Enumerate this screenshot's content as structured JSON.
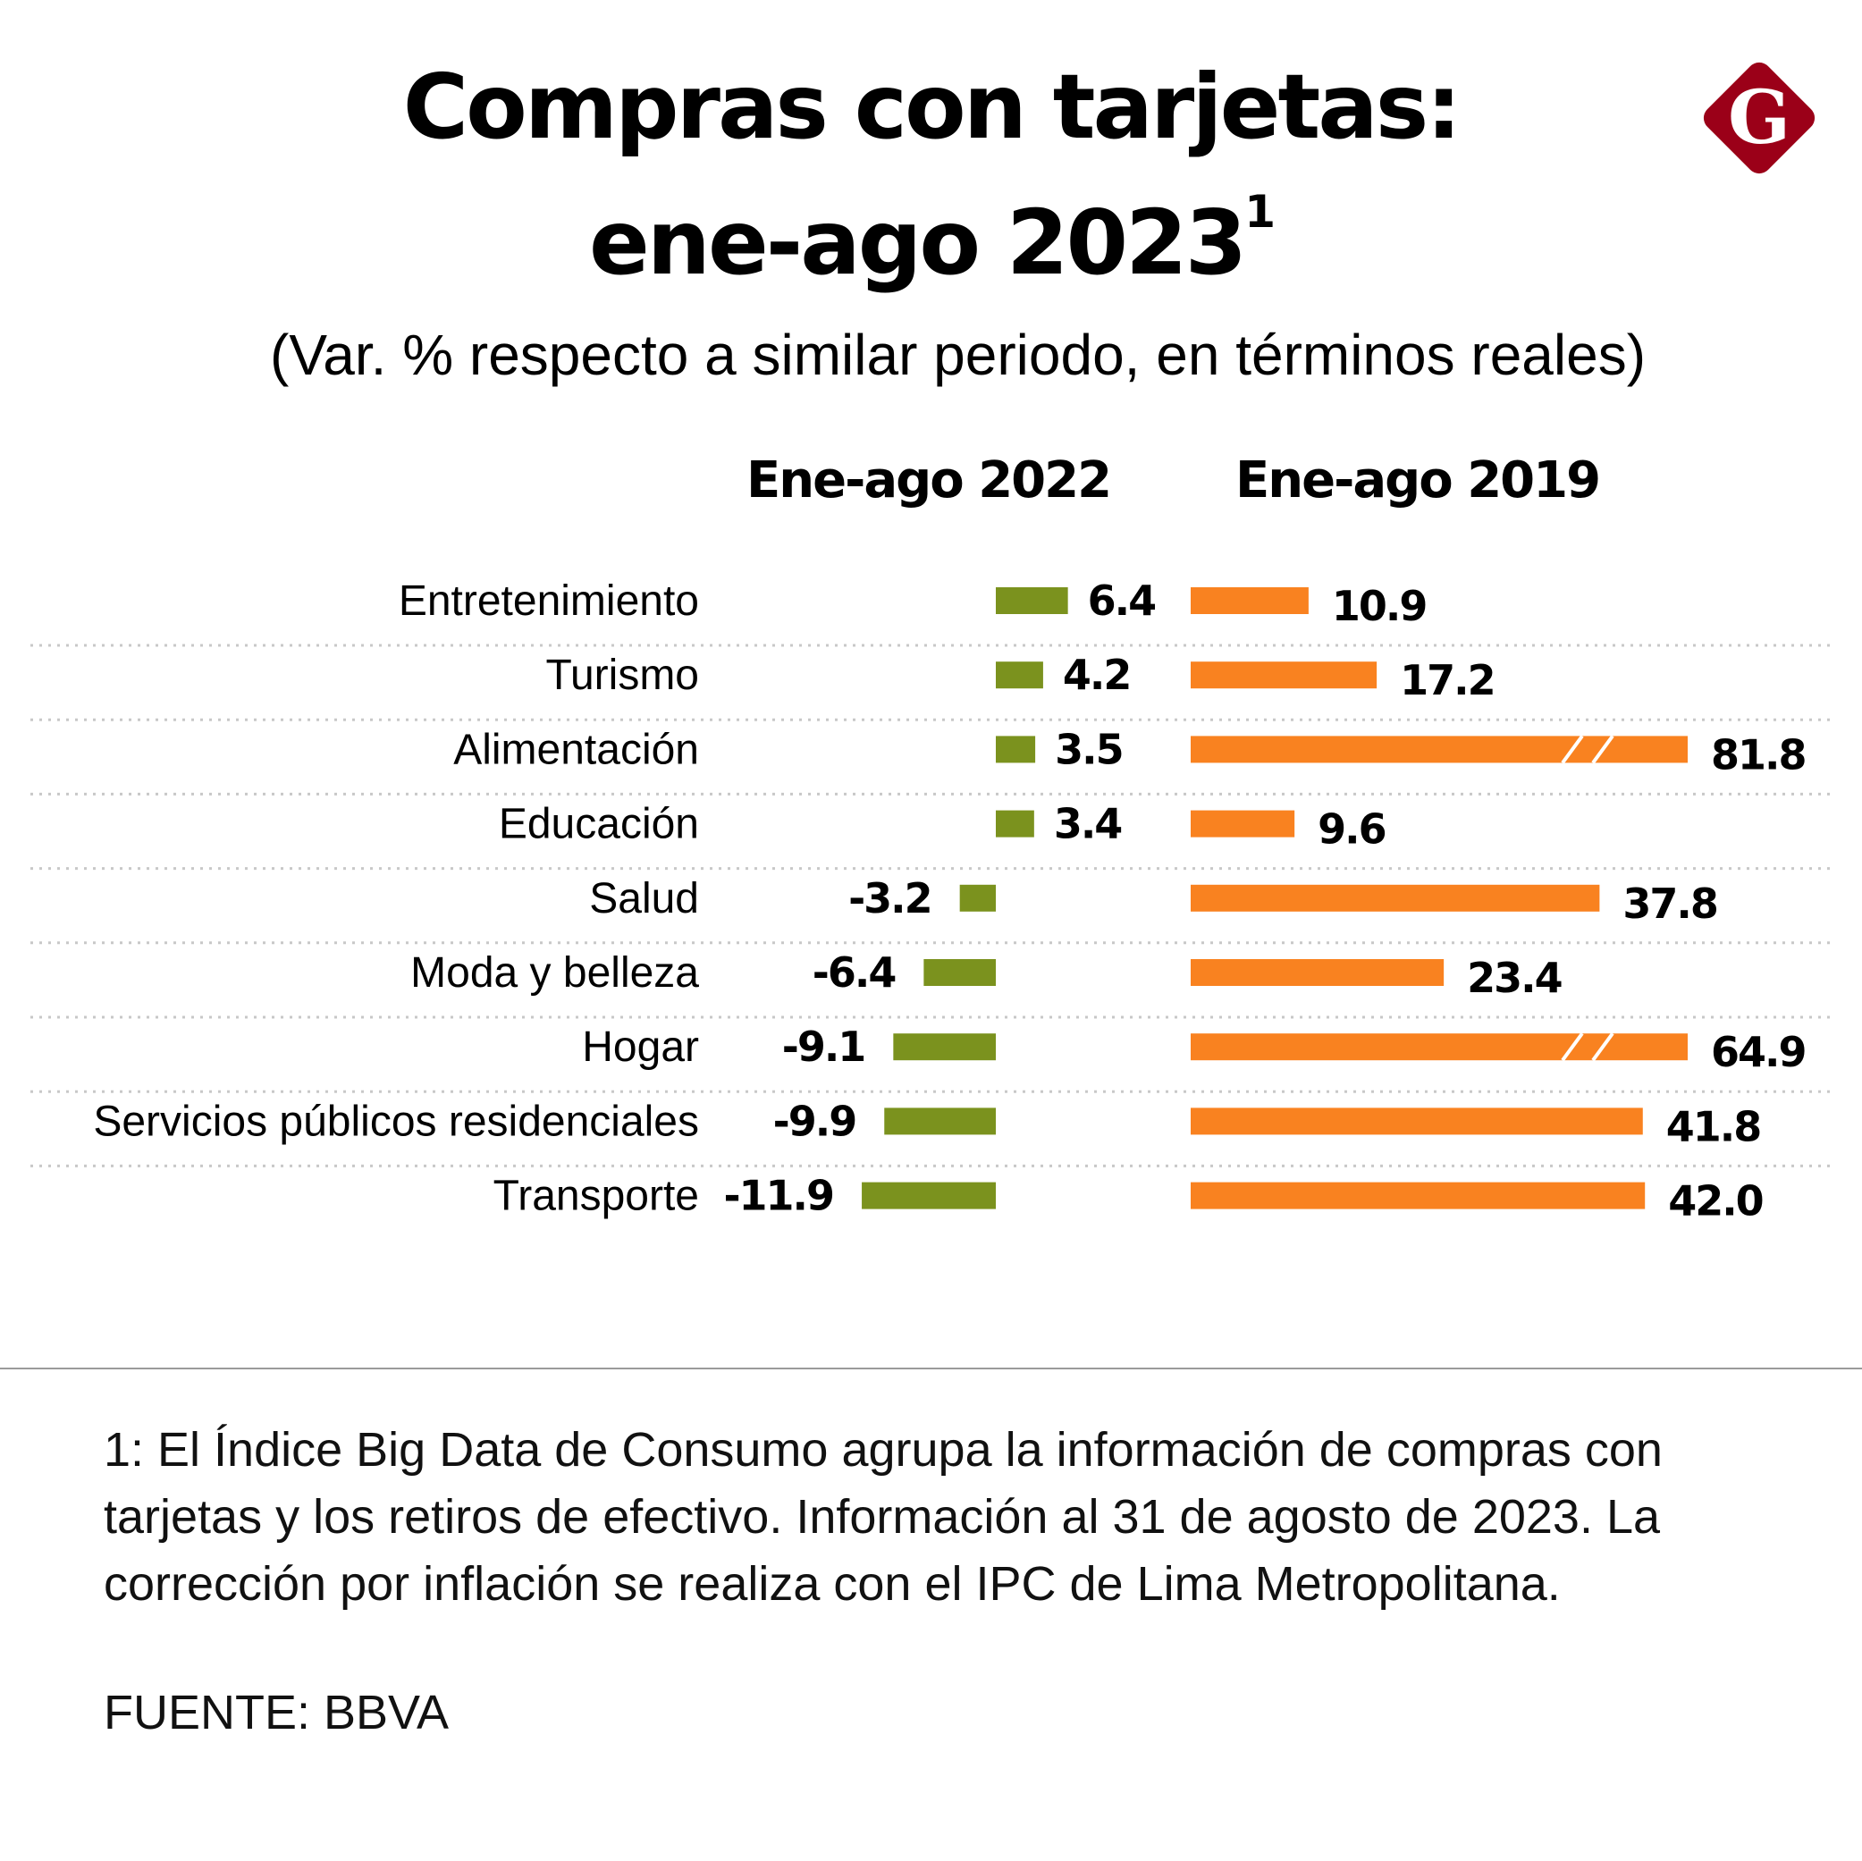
{
  "header": {
    "title_line1": "Compras con tarjetas:",
    "title_line2": "ene-ago 2023",
    "title_superscript": "1",
    "subtitle": "(Var. % respecto a similar periodo, en términos reales)",
    "logo_icon": "gestion-g-diamond-icon",
    "logo_letter": "G"
  },
  "colors": {
    "series_2022": "#7b921e",
    "series_2019": "#f98220",
    "logo": "#9b0018",
    "separator": "#c8c8c8"
  },
  "chart_data": {
    "type": "bar",
    "orientation": "horizontal",
    "title": "Compras con tarjetas: ene-ago 2023",
    "subtitle": "(Var. % respecto a similar periodo, en términos reales)",
    "categories": [
      "Entretenimiento",
      "Turismo",
      "Alimentación",
      "Educación",
      "Salud",
      "Moda y belleza",
      "Hogar",
      "Servicios públicos residenciales",
      "Transporte"
    ],
    "series": [
      {
        "name": "Ene-ago 2022",
        "values": [
          6.4,
          4.2,
          3.5,
          3.4,
          -3.2,
          -6.4,
          -9.1,
          -9.9,
          -11.9
        ],
        "labels": [
          "6.4",
          "4.2",
          "3.5",
          "3.4",
          "-3.2",
          "-6.4",
          "-9.1",
          "-9.9",
          "-11.9"
        ],
        "color": "#7b921e"
      },
      {
        "name": "Ene-ago 2019",
        "values": [
          10.9,
          17.2,
          81.8,
          9.6,
          37.8,
          23.4,
          64.9,
          41.8,
          42.0
        ],
        "labels": [
          "10.9",
          "17.2",
          "81.8",
          "9.6",
          "37.8",
          "23.4",
          "64.9",
          "41.8",
          "42.0"
        ],
        "broken_axis": [
          false,
          false,
          true,
          false,
          false,
          false,
          true,
          false,
          false
        ],
        "color": "#f98220"
      }
    ],
    "xlabel": "",
    "ylabel": "",
    "grid": false,
    "legend": "column headers above each panel"
  },
  "footer": {
    "note": "1: El Índice Big Data de Consumo agrupa la información de compras con tarjetas y los retiros de efectivo. Información al 31 de agosto de 2023. La corrección por inflación se realiza con el IPC de Lima Metropolitana.",
    "source": "FUENTE: BBVA"
  }
}
